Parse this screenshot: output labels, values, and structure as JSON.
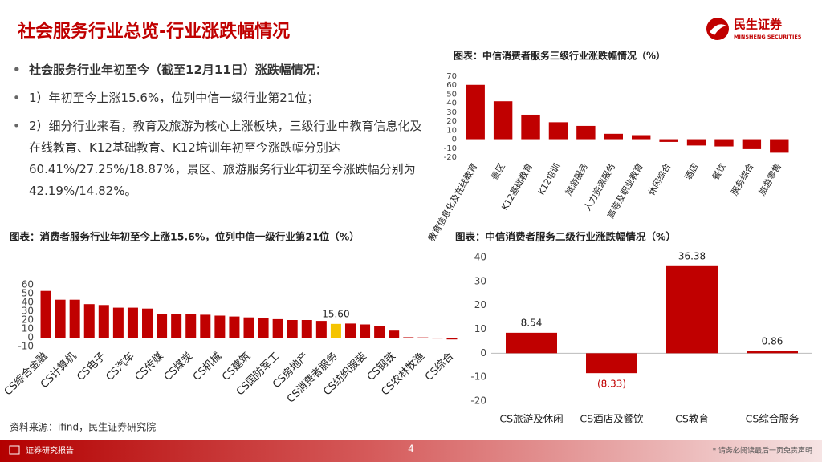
{
  "header": {
    "title": "社会服务行业总览-行业涨跌幅情况",
    "logo_name": "民生证券",
    "logo_sub": "MINSHENG SECURITIES"
  },
  "bullets": [
    {
      "text": "社会服务行业年初至今（截至12月11日）涨跌幅情况：",
      "bold": true
    },
    {
      "text": "1）年初至今上涨15.6%，位列中信一级行业第21位；",
      "bold": false
    },
    {
      "text": "2）细分行业来看，教育及旅游为核心上涨板块，三级行业中教育信息化及在线教育、K12基础教育、K12培训年初至今涨跌幅分别达60.41%/27.25%/18.87%，景区、旅游服务行业年初至今涨跌幅分别为42.19%/14.82%。",
      "bold": false
    }
  ],
  "chart_data": [
    {
      "type": "bar",
      "title": "图表：中信消费者服务三级行业涨跌幅情况（%）",
      "categories": [
        "教育信息化及在线教育",
        "景区",
        "K12基础教育",
        "K12培训",
        "旅游服务",
        "人力资源服务",
        "高等及职业教育",
        "休闲综合",
        "酒店",
        "餐饮",
        "服务综合",
        "旅游零售"
      ],
      "values": [
        60.41,
        42.19,
        27.25,
        18.87,
        14.82,
        6,
        4.5,
        -3,
        -7,
        -8,
        -11,
        -15
      ],
      "color": "#c00000",
      "ylim": [
        -20,
        70
      ],
      "yticks": [
        -20,
        -10,
        0,
        10,
        20,
        30,
        40,
        50,
        60,
        70
      ]
    },
    {
      "type": "bar",
      "title": "图表：消费者服务行业年初至今上涨15.6%，位列中信一级行业第21位（%）",
      "categories": [
        "CS综合金融",
        null,
        "CS计算机",
        null,
        "CS电子",
        null,
        "CS汽车",
        null,
        "CS传媒",
        null,
        "CS煤炭",
        null,
        "CS机械",
        null,
        "CS建筑",
        null,
        "CS国防军工",
        null,
        "CS房地产",
        null,
        "CS消费者服务",
        null,
        "CS纺织服装",
        null,
        "CS钢铁",
        null,
        "CS农林牧渔",
        null,
        "CS综合"
      ],
      "values": [
        53,
        43,
        43,
        38,
        37,
        34,
        34,
        33,
        27,
        27,
        27,
        26,
        25,
        24,
        23,
        22,
        21,
        20,
        20,
        19,
        15.6,
        16,
        15,
        13,
        8,
        0.5,
        0.3,
        -1,
        -2
      ],
      "value_labels": [
        null,
        null,
        null,
        null,
        null,
        null,
        null,
        null,
        null,
        null,
        null,
        null,
        null,
        null,
        null,
        null,
        null,
        null,
        null,
        null,
        "15.60",
        null,
        null,
        null,
        null,
        null,
        null,
        null,
        null
      ],
      "color": "#c00000",
      "highlight": {
        "index": 20,
        "color": "#f5c400"
      },
      "ylim": [
        -10,
        60
      ],
      "yticks": [
        -10,
        0,
        10,
        20,
        30,
        40,
        50,
        60
      ]
    },
    {
      "type": "bar",
      "title": "图表：中信消费者服务二级行业涨跌幅情况（%）",
      "categories": [
        "CS旅游及休闲",
        "CS酒店及餐饮",
        "CS教育",
        "CS综合服务"
      ],
      "values": [
        8.54,
        -8.33,
        36.38,
        0.86
      ],
      "value_labels": [
        "8.54",
        "(8.33)",
        "36.38",
        "0.86"
      ],
      "color": "#c00000",
      "ylim": [
        -20,
        40
      ],
      "yticks": [
        -20,
        -10,
        0,
        10,
        20,
        30,
        40
      ]
    }
  ],
  "source": "资料来源：ifind，民生证券研究院",
  "footer": {
    "left": "证券研究报告",
    "page": "4",
    "right": "* 请务必阅读最后一页免责声明"
  }
}
